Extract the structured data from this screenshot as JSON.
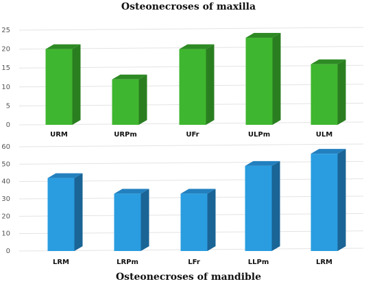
{
  "chart_data": [
    {
      "type": "bar",
      "title": "Osteonecroses  of maxilla",
      "categories": [
        "URM",
        "URPm",
        "UFr",
        "ULPm",
        "ULM"
      ],
      "values": [
        20,
        12,
        20,
        23,
        16
      ],
      "ylim": [
        0,
        25
      ],
      "yticks": [
        0,
        5,
        10,
        15,
        20,
        25
      ],
      "grid": true,
      "colors": {
        "front": "#3fb62f",
        "side": "#2a7e20",
        "top": "#2e8a24"
      }
    },
    {
      "type": "bar",
      "title": "Osteonecroses of mandible",
      "categories": [
        "LRM",
        "LRPm",
        "LFr",
        "LLPm",
        "LRM"
      ],
      "values": [
        42,
        33,
        33,
        49,
        56
      ],
      "ylim": [
        0,
        60
      ],
      "yticks": [
        0,
        10,
        20,
        30,
        40,
        50,
        60
      ],
      "grid": true,
      "colors": {
        "front": "#2a9de0",
        "side": "#1a6496",
        "top": "#2380bf"
      }
    }
  ]
}
